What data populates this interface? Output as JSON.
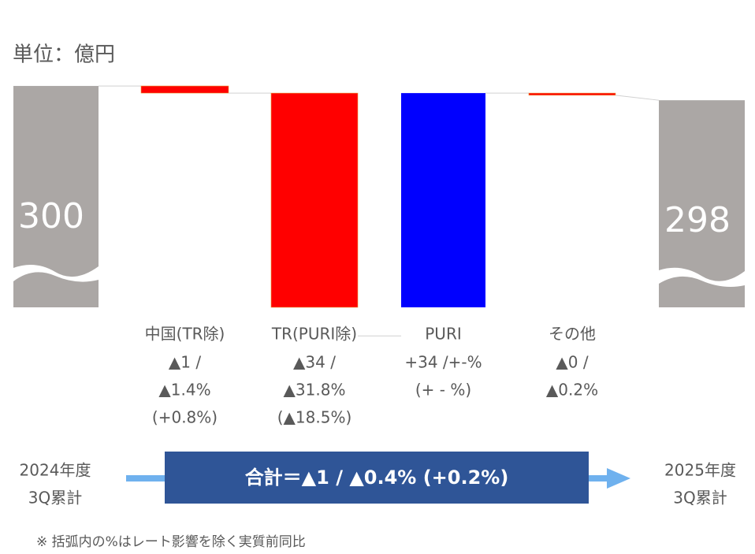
{
  "chart_data": {
    "type": "waterfall",
    "unit_label": "単位：億円",
    "start": {
      "label_lines": [
        "2024年度",
        "3Q累計"
      ],
      "value": 300,
      "color": "#aba7a5"
    },
    "end": {
      "label_lines": [
        "2025年度",
        "3Q累計"
      ],
      "value": 298,
      "color": "#aba7a5"
    },
    "categories": [
      "中国(TR除)",
      "TR(PURI除)",
      "PURI",
      "その他"
    ],
    "values": [
      -1,
      -34,
      34,
      -0.3
    ],
    "colors": [
      "#ff0000",
      "#ff0000",
      "#0000ff",
      "#ff0000"
    ],
    "annotations": [
      [
        "▲1 /",
        "▲1.4%",
        "(+0.8%)"
      ],
      [
        "▲34 /",
        "▲31.8%",
        "(▲18.5%)"
      ],
      [
        "+34 /+-%",
        "(+ - %)"
      ],
      [
        "▲0 /",
        "▲0.2%"
      ]
    ],
    "ylim": [
      269,
      301
    ],
    "total_label": "合計＝▲1 / ▲0.4% (+0.2%)",
    "footnote": "※ 括弧内の%はレート影響を除く実質前同比"
  }
}
